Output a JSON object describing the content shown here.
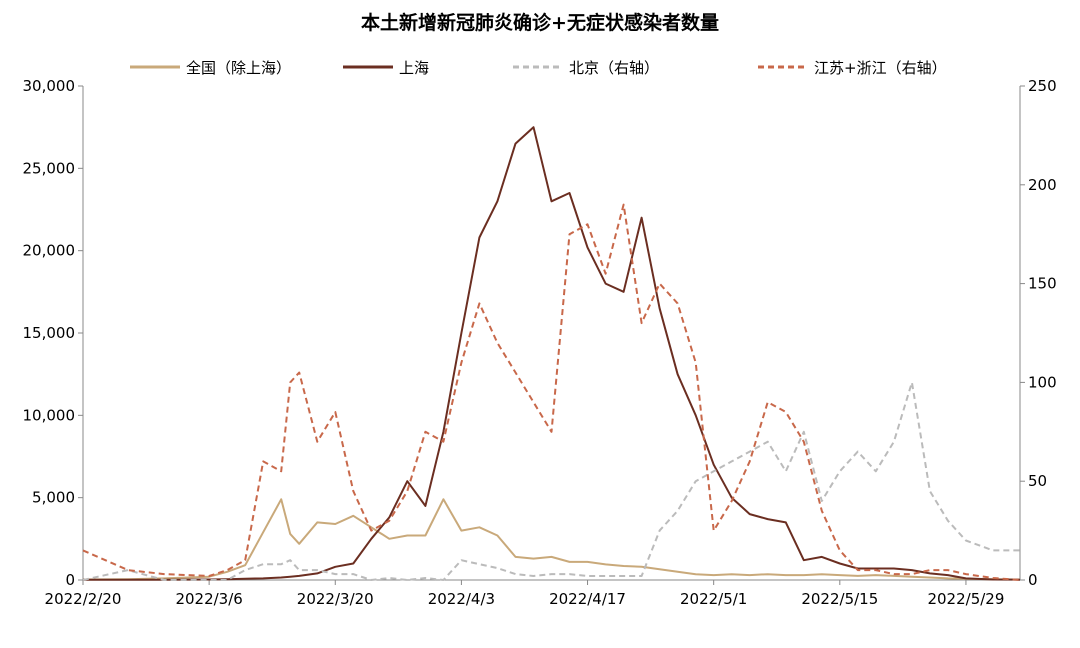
{
  "chart_data": {
    "type": "line",
    "title": "本土新增新冠肺炎确诊+无症状感染者数量",
    "x": [
      "2022/2/20",
      "2022/2/25",
      "2022/3/1",
      "2022/3/6",
      "2022/3/8",
      "2022/3/10",
      "2022/3/12",
      "2022/3/14",
      "2022/3/15",
      "2022/3/16",
      "2022/3/18",
      "2022/3/20",
      "2022/3/22",
      "2022/3/24",
      "2022/3/26",
      "2022/3/28",
      "2022/3/30",
      "2022/4/1",
      "2022/4/3",
      "2022/4/5",
      "2022/4/7",
      "2022/4/9",
      "2022/4/11",
      "2022/4/13",
      "2022/4/15",
      "2022/4/17",
      "2022/4/19",
      "2022/4/21",
      "2022/4/23",
      "2022/4/25",
      "2022/4/27",
      "2022/4/29",
      "2022/5/1",
      "2022/5/3",
      "2022/5/5",
      "2022/5/7",
      "2022/5/9",
      "2022/5/11",
      "2022/5/13",
      "2022/5/15",
      "2022/5/17",
      "2022/5/19",
      "2022/5/21",
      "2022/5/23",
      "2022/5/25",
      "2022/5/27",
      "2022/5/29",
      "2022/6/1",
      "2022/6/4"
    ],
    "x_ticks": [
      "2022/2/20",
      "2022/3/6",
      "2022/3/20",
      "2022/4/3",
      "2022/4/17",
      "2022/5/1",
      "2022/5/15",
      "2022/5/29"
    ],
    "series": [
      {
        "name": "全国（除上海）",
        "axis": "left",
        "color": "#C9A97A",
        "style": "solid",
        "values": [
          30,
          50,
          100,
          200,
          500,
          900,
          2900,
          4900,
          2800,
          2200,
          3500,
          3400,
          3900,
          3200,
          2500,
          2700,
          2700,
          4900,
          3000,
          3200,
          2700,
          1400,
          1300,
          1400,
          1100,
          1100,
          950,
          850,
          800,
          650,
          500,
          350,
          300,
          350,
          300,
          350,
          300,
          300,
          350,
          300,
          250,
          300,
          250,
          200,
          150,
          100,
          80,
          40,
          30
        ]
      },
      {
        "name": "上海",
        "axis": "left",
        "color": "#6B2E21",
        "style": "solid",
        "values": [
          20,
          20,
          20,
          30,
          50,
          80,
          100,
          150,
          200,
          250,
          400,
          800,
          1000,
          2500,
          3800,
          6000,
          4500,
          9000,
          15000,
          20800,
          23000,
          26500,
          27500,
          23000,
          23500,
          20200,
          18000,
          17500,
          22000,
          16500,
          12500,
          10000,
          7000,
          5000,
          4000,
          3700,
          3500,
          1200,
          1400,
          1000,
          700,
          700,
          700,
          600,
          400,
          300,
          100,
          30,
          20
        ]
      },
      {
        "name": "北京（右轴）",
        "axis": "right",
        "color": "#BBBBBB",
        "style": "dashed",
        "values": [
          0,
          5,
          0,
          0,
          0,
          5,
          8,
          8,
          10,
          5,
          5,
          3,
          3,
          0,
          1,
          0,
          1,
          0,
          10,
          8,
          6,
          3,
          2,
          3,
          3,
          2,
          2,
          2,
          2,
          25,
          35,
          50,
          55,
          60,
          65,
          70,
          55,
          75,
          40,
          55,
          65,
          55,
          70,
          100,
          45,
          30,
          20,
          15,
          15
        ]
      },
      {
        "name": "江苏+浙江（右轴）",
        "axis": "right",
        "color": "#C8684A",
        "style": "dashed",
        "values": [
          15,
          5,
          3,
          2,
          5,
          10,
          60,
          55,
          100,
          105,
          70,
          85,
          45,
          25,
          30,
          45,
          75,
          70,
          110,
          140,
          120,
          105,
          90,
          75,
          175,
          180,
          155,
          190,
          130,
          150,
          140,
          110,
          25,
          40,
          60,
          90,
          85,
          70,
          35,
          15,
          5,
          5,
          3,
          3,
          5,
          5,
          3,
          1,
          0
        ]
      }
    ],
    "ylim_left": [
      0,
      30000
    ],
    "yticks_left": [
      "0",
      "5,000",
      "10,000",
      "15,000",
      "20,000",
      "25,000",
      "30,000"
    ],
    "ylim_right": [
      0,
      250
    ],
    "yticks_right": [
      "0",
      "50",
      "100",
      "150",
      "200",
      "250"
    ],
    "legend_placement": "top",
    "grid": false
  }
}
